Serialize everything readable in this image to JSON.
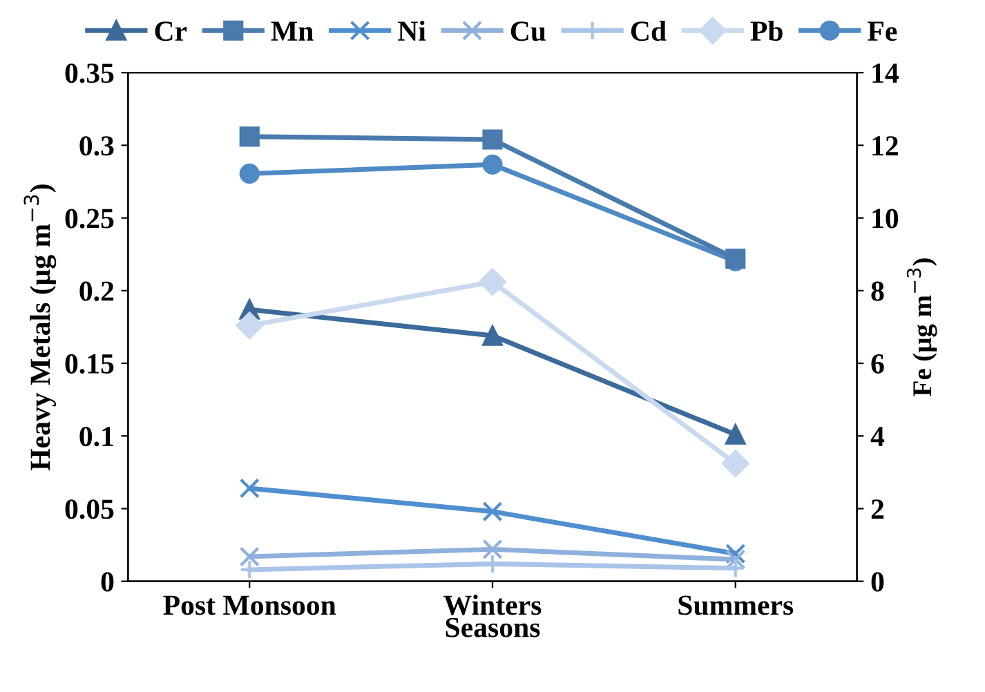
{
  "chart_data": {
    "type": "line",
    "xlabel": "Seasons",
    "ylabel": "Heavy Metals (μg m$^{−3}$)",
    "y2label": "Fe (μg m$^{−3}$)",
    "categories": [
      "Post Monsoon",
      "Winters",
      "Summers"
    ],
    "ylim": [
      0,
      0.35
    ],
    "yticks": [
      0,
      0.05,
      0.1,
      0.15,
      0.2,
      0.25,
      0.3,
      0.35
    ],
    "y2lim": [
      0,
      14
    ],
    "y2ticks": [
      0,
      2,
      4,
      6,
      8,
      10,
      12,
      14
    ],
    "grid": false,
    "legend": "top",
    "line_style": "solid",
    "series": [
      {
        "name": "Cr",
        "color": "#3c6a9a",
        "marker": "triangle",
        "values": [
          0.187,
          0.169,
          0.101
        ]
      },
      {
        "name": "Mn",
        "color": "#4a7aae",
        "marker": "square",
        "values": [
          0.306,
          0.304,
          0.222
        ]
      },
      {
        "name": "Ni",
        "color": "#4f8fd0",
        "marker": "cross",
        "values": [
          0.064,
          0.048,
          0.019
        ]
      },
      {
        "name": "Cu",
        "color": "#8fb0dc",
        "marker": "cross",
        "values": [
          0.017,
          0.022,
          0.015
        ]
      },
      {
        "name": "Cd",
        "color": "#a9c4e8",
        "marker": "plus",
        "values": [
          0.008,
          0.012,
          0.009
        ]
      },
      {
        "name": "Pb",
        "color": "#c9d9ef",
        "marker": "diamond",
        "values": [
          0.176,
          0.206,
          0.081
        ]
      },
      {
        "name": "Fe",
        "color": "#4f8ac4",
        "marker": "circle",
        "axis": "y2",
        "values": [
          11.22,
          11.47,
          8.81
        ]
      }
    ]
  }
}
